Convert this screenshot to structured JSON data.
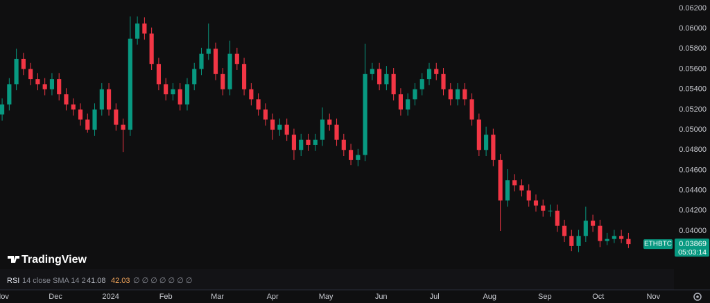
{
  "chart_data": {
    "type": "candlestick",
    "symbol": "ETHBTC",
    "logo": "TradingView",
    "last_price_label": "0.03869",
    "countdown": "05:03:14",
    "up_color": "#089981",
    "down_color": "#f23645",
    "open": [
      0.0515,
      0.0525,
      0.0545,
      0.057,
      0.056,
      0.055,
      0.0545,
      0.054,
      0.055,
      0.0535,
      0.0525,
      0.052,
      0.051,
      0.05,
      0.052,
      0.054,
      0.052,
      0.0505,
      0.05,
      0.059,
      0.0605,
      0.0595,
      0.0565,
      0.0545,
      0.0535,
      0.054,
      0.0525,
      0.0545,
      0.056,
      0.0575,
      0.058,
      0.0555,
      0.054,
      0.0575,
      0.0565,
      0.054,
      0.053,
      0.052,
      0.051,
      0.05,
      0.0505,
      0.0495,
      0.048,
      0.049,
      0.0485,
      0.049,
      0.051,
      0.0505,
      0.049,
      0.048,
      0.047,
      0.0475,
      0.0555,
      0.056,
      0.0545,
      0.0555,
      0.0535,
      0.052,
      0.053,
      0.054,
      0.055,
      0.056,
      0.0555,
      0.054,
      0.053,
      0.054,
      0.053,
      0.051,
      0.048,
      0.0495,
      0.047,
      0.043,
      0.045,
      0.0445,
      0.044,
      0.043,
      0.0425,
      0.042,
      0.042,
      0.0405,
      0.0395,
      0.0385,
      0.0395,
      0.041,
      0.0405,
      0.039,
      0.0392,
      0.0395,
      0.0392
    ],
    "high": [
      0.0531,
      0.0551,
      0.058,
      0.0576,
      0.0566,
      0.0556,
      0.0551,
      0.0556,
      0.0556,
      0.0541,
      0.0531,
      0.0526,
      0.0516,
      0.0526,
      0.0546,
      0.0546,
      0.0526,
      0.0511,
      0.0612,
      0.0612,
      0.0611,
      0.0601,
      0.0571,
      0.0551,
      0.0546,
      0.0546,
      0.0551,
      0.0566,
      0.0581,
      0.0605,
      0.0586,
      0.0561,
      0.0588,
      0.0581,
      0.0571,
      0.0546,
      0.0536,
      0.0526,
      0.0516,
      0.0511,
      0.0511,
      0.0501,
      0.0496,
      0.0496,
      0.0496,
      0.0522,
      0.0516,
      0.0511,
      0.0496,
      0.0486,
      0.0481,
      0.0585,
      0.0566,
      0.0566,
      0.0563,
      0.0561,
      0.0541,
      0.0536,
      0.0546,
      0.0556,
      0.0566,
      0.0566,
      0.0561,
      0.0546,
      0.0546,
      0.0546,
      0.0536,
      0.0516,
      0.0503,
      0.0501,
      0.0476,
      0.0461,
      0.0456,
      0.0451,
      0.0446,
      0.0436,
      0.0431,
      0.0426,
      0.0426,
      0.0411,
      0.0401,
      0.0401,
      0.0424,
      0.0416,
      0.0411,
      0.0398,
      0.0401,
      0.0401,
      0.0398
    ],
    "low": [
      0.0509,
      0.0519,
      0.0539,
      0.0554,
      0.0544,
      0.0539,
      0.0534,
      0.0534,
      0.0529,
      0.0519,
      0.0514,
      0.0504,
      0.0497,
      0.0494,
      0.0514,
      0.0514,
      0.0499,
      0.0478,
      0.0494,
      0.0584,
      0.0589,
      0.0559,
      0.0539,
      0.0529,
      0.0529,
      0.0519,
      0.0519,
      0.0539,
      0.0554,
      0.0569,
      0.0549,
      0.0534,
      0.0534,
      0.0559,
      0.0534,
      0.0524,
      0.0514,
      0.0504,
      0.049,
      0.0494,
      0.0489,
      0.047,
      0.0474,
      0.0479,
      0.0479,
      0.0484,
      0.0499,
      0.0484,
      0.0474,
      0.0465,
      0.0464,
      0.0469,
      0.0549,
      0.0539,
      0.0539,
      0.0529,
      0.0514,
      0.0514,
      0.0524,
      0.0534,
      0.0544,
      0.0549,
      0.0534,
      0.0524,
      0.0524,
      0.0524,
      0.0504,
      0.0474,
      0.0474,
      0.0464,
      0.04,
      0.0424,
      0.0439,
      0.0434,
      0.0424,
      0.0419,
      0.0414,
      0.0414,
      0.0399,
      0.0389,
      0.038,
      0.0379,
      0.0389,
      0.0399,
      0.0384,
      0.0386,
      0.0388,
      0.0388,
      0.0383
    ],
    "close": [
      0.0525,
      0.0545,
      0.057,
      0.056,
      0.055,
      0.0545,
      0.054,
      0.055,
      0.0535,
      0.0525,
      0.052,
      0.051,
      0.05,
      0.052,
      0.054,
      0.052,
      0.0505,
      0.05,
      0.059,
      0.0605,
      0.0595,
      0.0565,
      0.0545,
      0.0535,
      0.054,
      0.0525,
      0.0545,
      0.056,
      0.0575,
      0.058,
      0.0555,
      0.054,
      0.0575,
      0.0565,
      0.054,
      0.053,
      0.052,
      0.051,
      0.05,
      0.0505,
      0.0495,
      0.048,
      0.049,
      0.0485,
      0.049,
      0.051,
      0.0505,
      0.049,
      0.048,
      0.047,
      0.0475,
      0.0555,
      0.056,
      0.0545,
      0.0555,
      0.0535,
      0.052,
      0.053,
      0.054,
      0.055,
      0.056,
      0.0555,
      0.054,
      0.053,
      0.054,
      0.053,
      0.051,
      0.048,
      0.0495,
      0.047,
      0.043,
      0.045,
      0.0445,
      0.044,
      0.043,
      0.0425,
      0.042,
      0.042,
      0.0405,
      0.0395,
      0.0385,
      0.0395,
      0.041,
      0.0405,
      0.039,
      0.0392,
      0.0395,
      0.0392,
      0.03869
    ],
    "xlim": [
      -0.3,
      94
    ],
    "xticks": [
      {
        "value": 0,
        "label": "Nov"
      },
      {
        "value": 7.5,
        "label": "Dec"
      },
      {
        "value": 15.25,
        "label": "2024"
      },
      {
        "value": 23,
        "label": "Feb"
      },
      {
        "value": 30.25,
        "label": "Mar"
      },
      {
        "value": 38,
        "label": "Apr"
      },
      {
        "value": 45.5,
        "label": "May"
      },
      {
        "value": 53.25,
        "label": "Jun"
      },
      {
        "value": 60.75,
        "label": "Jul"
      },
      {
        "value": 68.5,
        "label": "Aug"
      },
      {
        "value": 76.25,
        "label": "Sep"
      },
      {
        "value": 83.75,
        "label": "Oct"
      },
      {
        "value": 91.5,
        "label": "Nov"
      }
    ],
    "ylim": [
      0.03623,
      0.06282
    ],
    "yticks": [
      {
        "value": 0.062,
        "label": "0.06200"
      },
      {
        "value": 0.06,
        "label": "0.06000"
      },
      {
        "value": 0.058,
        "label": "0.05800"
      },
      {
        "value": 0.056,
        "label": "0.05600"
      },
      {
        "value": 0.054,
        "label": "0.05400"
      },
      {
        "value": 0.052,
        "label": "0.05200"
      },
      {
        "value": 0.05,
        "label": "0.05000"
      },
      {
        "value": 0.048,
        "label": "0.04800"
      },
      {
        "value": 0.046,
        "label": "0.04600"
      },
      {
        "value": 0.044,
        "label": "0.04400"
      },
      {
        "value": 0.042,
        "label": "0.04200"
      },
      {
        "value": 0.04,
        "label": "0.04000"
      }
    ],
    "indicator": {
      "name": "RSI",
      "params": "14 close SMA 14 2",
      "value_1": "41.08",
      "value_2": "42.03",
      "extras": "∅ ∅ ∅ ∅ ∅ ∅ ∅"
    }
  }
}
